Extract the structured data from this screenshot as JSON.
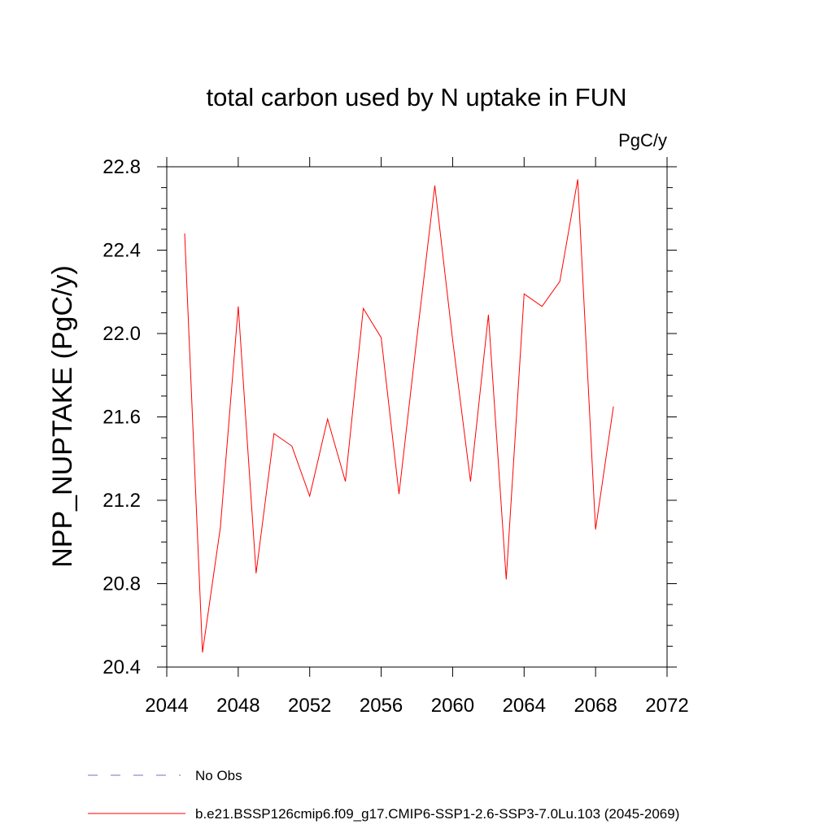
{
  "chart_data": {
    "type": "line",
    "title": "total carbon used by N uptake in FUN",
    "units": "PgC/y",
    "ylabel": "NPP_NUPTAKE  (PgC/y)",
    "xlabel": "",
    "xlim": [
      2044,
      2072
    ],
    "ylim": [
      20.4,
      22.8
    ],
    "x_ticks": [
      2044,
      2048,
      2052,
      2056,
      2060,
      2064,
      2068,
      2072
    ],
    "x_tick_labels": [
      "2044",
      "2048",
      "2052",
      "2056",
      "2060",
      "2064",
      "2068",
      "2072"
    ],
    "y_ticks": [
      20.4,
      20.8,
      21.2,
      21.6,
      22.0,
      22.4,
      22.8
    ],
    "y_tick_labels": [
      "20.4",
      "20.8",
      "21.2",
      "21.6",
      "22.0",
      "22.4",
      "22.8"
    ],
    "grid": false,
    "legend_position": "bottom-left, below plot",
    "series": [
      {
        "name": "b.e21.BSSP126cmip6.f09_g17.CMIP6-SSP1-2.6-SSP3-7.0Lu.103 (2045-2069)",
        "color": "#ff0000",
        "style": "solid",
        "x": [
          2045,
          2046,
          2047,
          2048,
          2049,
          2050,
          2051,
          2052,
          2053,
          2054,
          2055,
          2056,
          2057,
          2058,
          2059,
          2060,
          2061,
          2062,
          2063,
          2064,
          2065,
          2066,
          2067,
          2068,
          2069
        ],
        "y": [
          22.48,
          20.47,
          21.07,
          22.13,
          20.85,
          21.52,
          21.46,
          21.22,
          21.59,
          21.29,
          22.12,
          21.98,
          21.23,
          21.98,
          22.71,
          21.97,
          21.29,
          22.09,
          20.82,
          22.19,
          22.13,
          22.25,
          22.74,
          21.06,
          21.65
        ]
      }
    ],
    "legend": [
      {
        "label": "No Obs",
        "color": "#7b68c8",
        "style": "dashed"
      },
      {
        "label": "b.e21.BSSP126cmip6.f09_g17.CMIP6-SSP1-2.6-SSP3-7.0Lu.103 (2045-2069)",
        "color": "#ff0000",
        "style": "solid"
      }
    ]
  }
}
